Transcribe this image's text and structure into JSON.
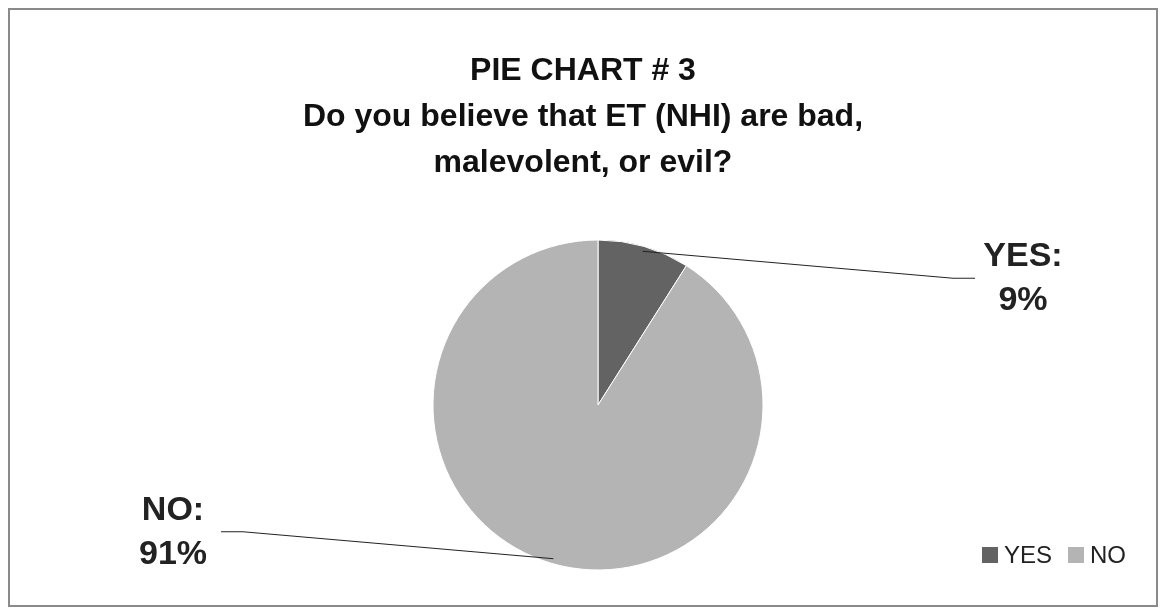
{
  "chart_data": {
    "type": "pie",
    "title": "PIE CHART # 3",
    "subtitle": "Do you believe that ET (NHI) are bad, malevolent, or evil?",
    "categories": [
      "YES",
      "NO"
    ],
    "values": [
      9,
      91
    ],
    "colors": [
      "#636363",
      "#b4b4b4"
    ],
    "value_labels": [
      "YES: 9%",
      "NO: 91%"
    ],
    "legend": "bottom right"
  }
}
